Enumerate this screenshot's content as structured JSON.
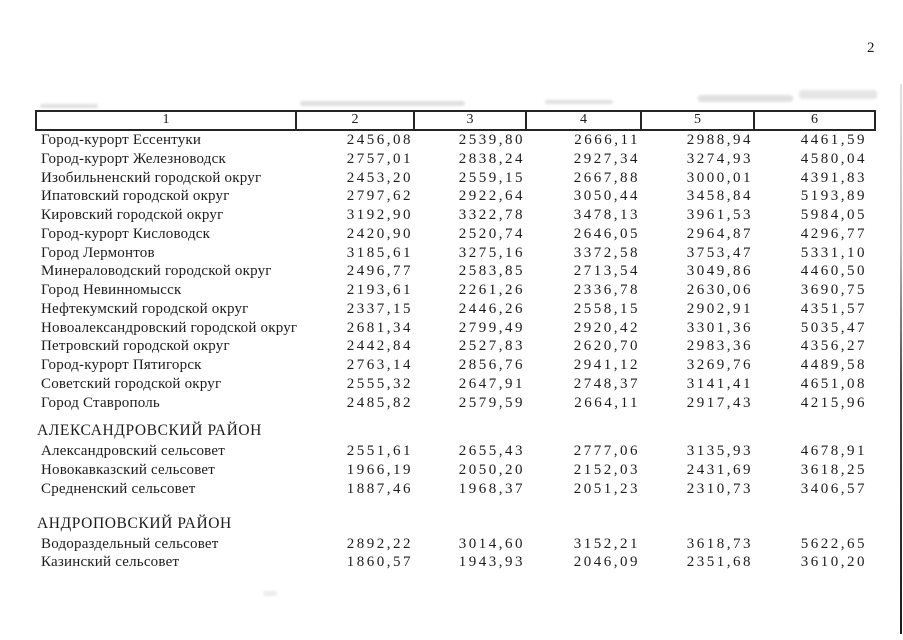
{
  "page": {
    "number": "2"
  },
  "table": {
    "columns": [
      "1",
      "2",
      "3",
      "4",
      "5",
      "6"
    ],
    "sections": [
      {
        "title": null,
        "rows": [
          {
            "name": "Город-курорт Ессентуки",
            "values": [
              "2456,08",
              "2539,80",
              "2666,11",
              "2988,94",
              "4461,59"
            ]
          },
          {
            "name": "Город-курорт Железноводск",
            "values": [
              "2757,01",
              "2838,24",
              "2927,34",
              "3274,93",
              "4580,04"
            ]
          },
          {
            "name": "Изобильненский городской округ",
            "values": [
              "2453,20",
              "2559,15",
              "2667,88",
              "3000,01",
              "4391,83"
            ]
          },
          {
            "name": "Ипатовский городской округ",
            "values": [
              "2797,62",
              "2922,64",
              "3050,44",
              "3458,84",
              "5193,89"
            ]
          },
          {
            "name": "Кировский городской округ",
            "values": [
              "3192,90",
              "3322,78",
              "3478,13",
              "3961,53",
              "5984,05"
            ]
          },
          {
            "name": "Город-курорт Кисловодск",
            "values": [
              "2420,90",
              "2520,74",
              "2646,05",
              "2964,87",
              "4296,77"
            ]
          },
          {
            "name": "Город Лермонтов",
            "values": [
              "3185,61",
              "3275,16",
              "3372,58",
              "3753,47",
              "5331,10"
            ]
          },
          {
            "name": "Минераловодский городской округ",
            "values": [
              "2496,77",
              "2583,85",
              "2713,54",
              "3049,86",
              "4460,50"
            ]
          },
          {
            "name": "Город Невинномысск",
            "values": [
              "2193,61",
              "2261,26",
              "2336,78",
              "2630,06",
              "3690,75"
            ]
          },
          {
            "name": "Нефтекумский городской округ",
            "values": [
              "2337,15",
              "2446,26",
              "2558,15",
              "2902,91",
              "4351,57"
            ]
          },
          {
            "name": "Новоалександровский городской округ",
            "values": [
              "2681,34",
              "2799,49",
              "2920,42",
              "3301,36",
              "5035,47"
            ]
          },
          {
            "name": "Петровский городской округ",
            "values": [
              "2442,84",
              "2527,83",
              "2620,70",
              "2983,36",
              "4356,27"
            ]
          },
          {
            "name": "Город-курорт Пятигорск",
            "values": [
              "2763,14",
              "2856,76",
              "2941,12",
              "3269,76",
              "4489,58"
            ]
          },
          {
            "name": "Советский городской округ",
            "values": [
              "2555,32",
              "2647,91",
              "2748,37",
              "3141,41",
              "4651,08"
            ]
          },
          {
            "name": "Город Ставрополь",
            "values": [
              "2485,82",
              "2579,59",
              "2664,11",
              "2917,43",
              "4215,96"
            ]
          }
        ]
      },
      {
        "title": "АЛЕКСАНДРОВСКИЙ РАЙОН",
        "rows": [
          {
            "name": "Александровский сельсовет",
            "values": [
              "2551,61",
              "2655,43",
              "2777,06",
              "3135,93",
              "4678,91"
            ]
          },
          {
            "name": "Новокавказский сельсовет",
            "values": [
              "1966,19",
              "2050,20",
              "2152,03",
              "2431,69",
              "3618,25"
            ]
          },
          {
            "name": "Средненский сельсовет",
            "values": [
              "1887,46",
              "1968,37",
              "2051,23",
              "2310,73",
              "3406,57"
            ]
          }
        ]
      },
      {
        "title": "АНДРОПОВСКИЙ РАЙОН",
        "rows": [
          {
            "name": "Водораздельный сельсовет",
            "values": [
              "2892,22",
              "3014,60",
              "3152,21",
              "3618,73",
              "5622,65"
            ]
          },
          {
            "name": "Казинский сельсовет",
            "values": [
              "1860,57",
              "1943,93",
              "2046,09",
              "2351,68",
              "3610,20"
            ]
          }
        ]
      }
    ]
  }
}
